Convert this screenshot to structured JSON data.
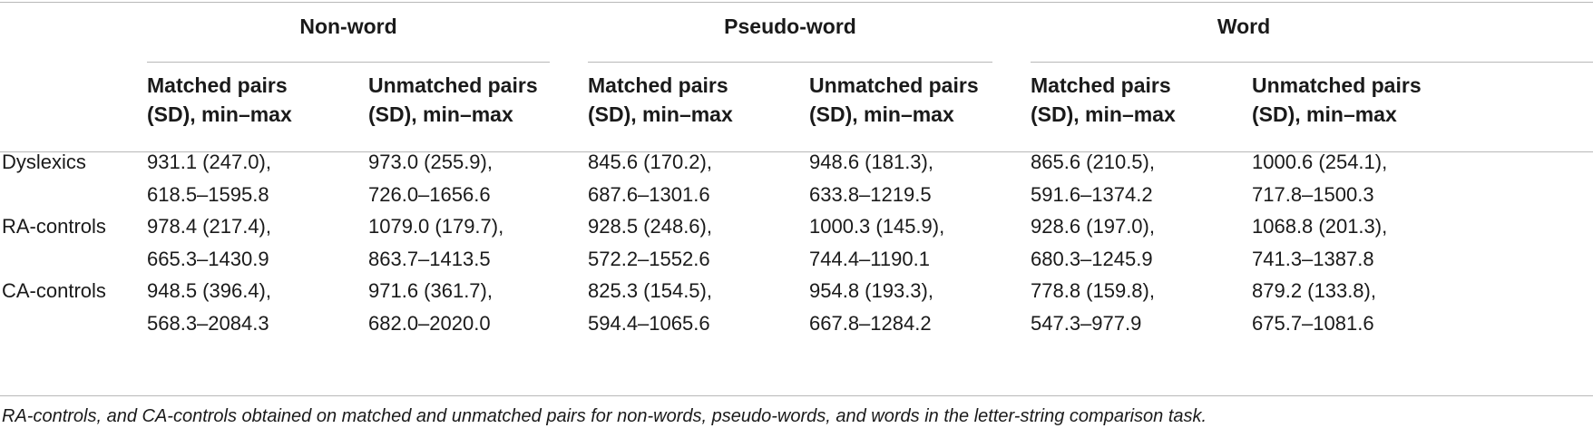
{
  "groups": [
    "Non-word",
    "Pseudo-word",
    "Word"
  ],
  "column_headers": {
    "matched": [
      "Matched pairs",
      "(SD), min–max"
    ],
    "unmatched": [
      "Unmatched pairs",
      "(SD), min–max"
    ]
  },
  "rows": [
    {
      "label": "Dyslexics",
      "cells": [
        [
          "931.1 (247.0),",
          "618.5–1595.8"
        ],
        [
          "973.0 (255.9),",
          "726.0–1656.6"
        ],
        [
          "845.6 (170.2),",
          "687.6–1301.6"
        ],
        [
          "948.6 (181.3),",
          "633.8–1219.5"
        ],
        [
          "865.6 (210.5),",
          "591.6–1374.2"
        ],
        [
          "1000.6 (254.1),",
          "717.8–1500.3"
        ]
      ]
    },
    {
      "label": "RA-controls",
      "cells": [
        [
          "978.4 (217.4),",
          "665.3–1430.9"
        ],
        [
          "1079.0 (179.7),",
          "863.7–1413.5"
        ],
        [
          "928.5 (248.6),",
          "572.2–1552.6"
        ],
        [
          "1000.3 (145.9),",
          "744.4–1190.1"
        ],
        [
          "928.6 (197.0),",
          "680.3–1245.9"
        ],
        [
          "1068.8 (201.3),",
          "741.3–1387.8"
        ]
      ]
    },
    {
      "label": "CA-controls",
      "cells": [
        [
          "948.5 (396.4),",
          "568.3–2084.3"
        ],
        [
          "971.6 (361.7),",
          "682.0–2020.0"
        ],
        [
          "825.3 (154.5),",
          "594.4–1065.6"
        ],
        [
          "954.8 (193.3),",
          "667.8–1284.2"
        ],
        [
          "778.8 (159.8),",
          "547.3–977.9"
        ],
        [
          "879.2 (133.8),",
          "675.7–1081.6"
        ]
      ]
    }
  ],
  "footnote": "RA-controls, and CA-controls obtained on matched and unmatched pairs for non-words, pseudo-words, and words in the letter-string comparison task."
}
